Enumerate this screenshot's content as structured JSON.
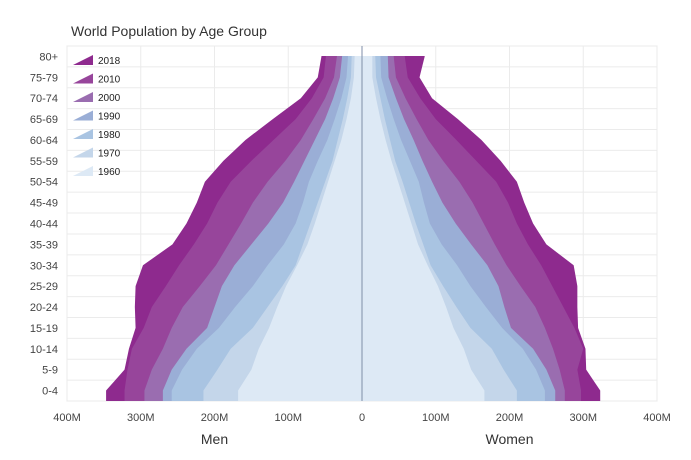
{
  "chart_data": {
    "type": "area",
    "title": "World Population by Age Group",
    "categories": [
      "0-4",
      "5-9",
      "10-14",
      "15-19",
      "20-24",
      "25-29",
      "30-34",
      "35-39",
      "40-44",
      "45-49",
      "50-54",
      "55-59",
      "60-64",
      "65-69",
      "70-74",
      "75-79",
      "80+"
    ],
    "xlim": [
      -400,
      400
    ],
    "x_ticks": [
      -400,
      -300,
      -200,
      -100,
      0,
      100,
      200,
      300,
      400
    ],
    "x_tick_labels": [
      "400M",
      "300M",
      "200M",
      "100M",
      "0",
      "100M",
      "200M",
      "300M",
      "400M"
    ],
    "left_label": "Men",
    "right_label": "Women",
    "grid": true,
    "legend_position": "top-left",
    "series": [
      {
        "name": "2018",
        "color": "#8e2a8e",
        "men": [
          347,
          322,
          316,
          307,
          308,
          307,
          297,
          257,
          238,
          224,
          213,
          188,
          158,
          121,
          83,
          60,
          55
        ],
        "women": [
          323,
          304,
          303,
          293,
          292,
          292,
          287,
          250,
          232,
          220,
          210,
          188,
          162,
          130,
          95,
          78,
          85
        ]
      },
      {
        "name": "2010",
        "color": "#97459b",
        "men": [
          322,
          318,
          312,
          296,
          285,
          266,
          248,
          228,
          210,
          196,
          178,
          150,
          120,
          90,
          68,
          52,
          49
        ],
        "women": [
          297,
          292,
          300,
          288,
          273,
          258,
          243,
          225,
          210,
          198,
          182,
          155,
          128,
          100,
          79,
          62,
          58
        ]
      },
      {
        "name": "2000",
        "color": "#9a6db0",
        "men": [
          295,
          285,
          270,
          258,
          243,
          220,
          198,
          181,
          164,
          148,
          128,
          104,
          83,
          66,
          50,
          38,
          34
        ],
        "women": [
          275,
          268,
          259,
          248,
          235,
          215,
          196,
          180,
          165,
          150,
          132,
          110,
          90,
          74,
          59,
          46,
          43
        ]
      },
      {
        "name": "1990",
        "color": "#9aaed6",
        "men": [
          270,
          258,
          238,
          210,
          200,
          190,
          173,
          150,
          127,
          107,
          92,
          78,
          64,
          50,
          39,
          30,
          27
        ],
        "women": [
          262,
          250,
          232,
          202,
          193,
          185,
          170,
          148,
          127,
          109,
          95,
          82,
          70,
          57,
          46,
          36,
          35
        ]
      },
      {
        "name": "1980",
        "color": "#a9c4e2",
        "men": [
          258,
          244,
          224,
          194,
          172,
          148,
          128,
          106,
          90,
          80,
          72,
          60,
          47,
          37,
          28,
          21,
          19
        ],
        "women": [
          248,
          236,
          218,
          190,
          168,
          147,
          129,
          108,
          92,
          84,
          77,
          65,
          53,
          43,
          34,
          26,
          25
        ]
      },
      {
        "name": "1970",
        "color": "#c4d6ea",
        "men": [
          215,
          196,
          178,
          148,
          128,
          108,
          90,
          80,
          70,
          60,
          50,
          40,
          33,
          26,
          20,
          15,
          14
        ],
        "women": [
          210,
          192,
          176,
          147,
          128,
          110,
          93,
          83,
          73,
          64,
          55,
          45,
          38,
          31,
          25,
          19,
          18
        ]
      },
      {
        "name": "1960",
        "color": "#dde9f5",
        "men": [
          168,
          150,
          140,
          126,
          115,
          103,
          88,
          74,
          64,
          55,
          46,
          37,
          28,
          21,
          15,
          11,
          10
        ],
        "women": [
          166,
          148,
          138,
          124,
          114,
          103,
          89,
          76,
          67,
          58,
          49,
          40,
          32,
          25,
          19,
          14,
          14
        ]
      }
    ]
  }
}
